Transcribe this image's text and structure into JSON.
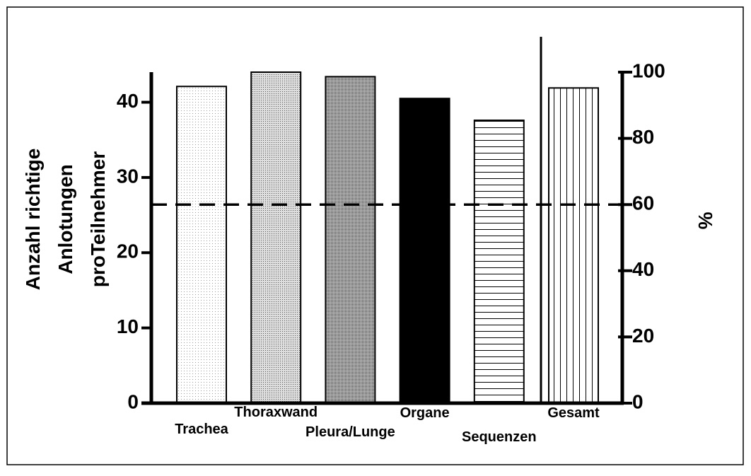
{
  "chart_data": {
    "type": "bar",
    "categories": [
      "Trachea",
      "Thoraxwand",
      "Pleura/Lunge",
      "Organe",
      "Sequenzen",
      "Gesamt"
    ],
    "values": [
      42.1,
      44.0,
      43.4,
      40.5,
      37.6,
      41.9
    ],
    "color": "#000000",
    "ylabel": [
      "Anzahl richtige",
      "Anlotungen",
      "proTeilnehmer"
    ],
    "y2label": "%",
    "ylim": [
      0,
      44
    ],
    "yticks": [
      0,
      10,
      20,
      30,
      40
    ],
    "y2lim": [
      0,
      100
    ],
    "y2ticks": [
      0,
      20,
      40,
      60,
      80,
      100
    ],
    "reference_line": {
      "value": 60,
      "axis": "y2"
    },
    "grid": false
  }
}
